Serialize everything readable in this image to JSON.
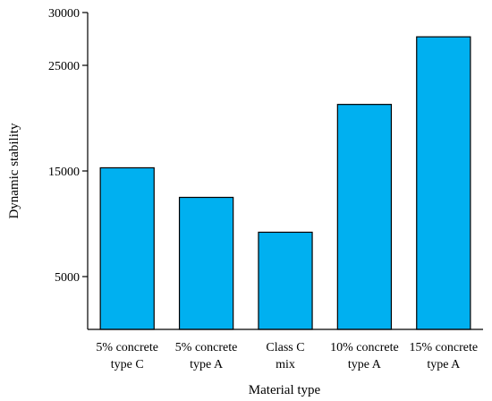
{
  "chart_data": {
    "type": "bar",
    "xlabel": "Material type",
    "ylabel": "Dynamic stability",
    "categories": [
      [
        "5% concrete",
        "type C"
      ],
      [
        "5% concrete",
        "type A"
      ],
      [
        "Class C",
        "mix"
      ],
      [
        "10% concrete",
        "type A"
      ],
      [
        "15% concrete",
        "type A"
      ]
    ],
    "values": [
      15300,
      12500,
      9200,
      21300,
      27700
    ],
    "y_ticks": [
      5000,
      15000,
      25000,
      30000
    ],
    "y_tick_labels": [
      "5000",
      "15000",
      "25000",
      "30000"
    ],
    "ylim": [
      0,
      30000
    ],
    "grid": false,
    "bar_color": "#00b0f0",
    "bar_edge_color": "#000000"
  }
}
